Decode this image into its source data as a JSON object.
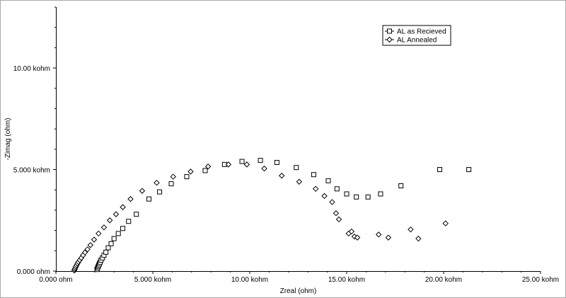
{
  "chart_data": {
    "type": "scatter",
    "title": "",
    "xlabel": "Zreal (ohm)",
    "ylabel": "-Zimag (ohm)",
    "xlim": [
      0,
      25000
    ],
    "ylim": [
      0,
      13000
    ],
    "grid": false,
    "legend_position": "top-right",
    "x_ticks": [
      {
        "value": 0,
        "label": "0.000 ohm"
      },
      {
        "value": 5000,
        "label": "5.000 kohm"
      },
      {
        "value": 10000,
        "label": "10.00 kohm"
      },
      {
        "value": 15000,
        "label": "15.00 kohm"
      },
      {
        "value": 20000,
        "label": "20.00 kohm"
      },
      {
        "value": 25000,
        "label": "25.00 kohm"
      }
    ],
    "y_ticks": [
      {
        "value": 0,
        "label": "0.000 ohm"
      },
      {
        "value": 5000,
        "label": "5.000 kohm"
      },
      {
        "value": 10000,
        "label": "10.00 kohm"
      }
    ],
    "series": [
      {
        "name": "AL as Recieved",
        "marker": "square",
        "points": [
          [
            2120,
            80
          ],
          [
            2150,
            150
          ],
          [
            2180,
            220
          ],
          [
            2210,
            290
          ],
          [
            2240,
            360
          ],
          [
            2280,
            440
          ],
          [
            2330,
            540
          ],
          [
            2400,
            650
          ],
          [
            2480,
            780
          ],
          [
            2580,
            930
          ],
          [
            2700,
            1150
          ],
          [
            2850,
            1350
          ],
          [
            3000,
            1600
          ],
          [
            3220,
            1850
          ],
          [
            3450,
            2100
          ],
          [
            3750,
            2450
          ],
          [
            4150,
            2800
          ],
          [
            4800,
            3550
          ],
          [
            5350,
            3900
          ],
          [
            5950,
            4300
          ],
          [
            6750,
            4650
          ],
          [
            7700,
            4950
          ],
          [
            8700,
            5250
          ],
          [
            9600,
            5400
          ],
          [
            10550,
            5450
          ],
          [
            11400,
            5350
          ],
          [
            12400,
            5100
          ],
          [
            13300,
            4750
          ],
          [
            14050,
            4450
          ],
          [
            14500,
            4050
          ],
          [
            15000,
            3800
          ],
          [
            15500,
            3650
          ],
          [
            16100,
            3650
          ],
          [
            16750,
            3800
          ],
          [
            17800,
            4200
          ],
          [
            19800,
            5000
          ],
          [
            21300,
            5000
          ]
        ]
      },
      {
        "name": "AL Annealed",
        "marker": "diamond",
        "points": [
          [
            950,
            30
          ],
          [
            970,
            90
          ],
          [
            1000,
            150
          ],
          [
            1030,
            220
          ],
          [
            1070,
            290
          ],
          [
            1110,
            370
          ],
          [
            1160,
            450
          ],
          [
            1230,
            540
          ],
          [
            1310,
            650
          ],
          [
            1400,
            780
          ],
          [
            1500,
            920
          ],
          [
            1630,
            1070
          ],
          [
            1780,
            1280
          ],
          [
            1970,
            1550
          ],
          [
            2200,
            1850
          ],
          [
            2480,
            2150
          ],
          [
            2780,
            2500
          ],
          [
            3100,
            2800
          ],
          [
            3450,
            3150
          ],
          [
            3850,
            3550
          ],
          [
            4450,
            3950
          ],
          [
            5200,
            4350
          ],
          [
            6050,
            4650
          ],
          [
            6950,
            4900
          ],
          [
            7850,
            5150
          ],
          [
            8900,
            5250
          ],
          [
            9850,
            5250
          ],
          [
            10750,
            5050
          ],
          [
            11650,
            4700
          ],
          [
            12550,
            4400
          ],
          [
            13400,
            4050
          ],
          [
            13850,
            3700
          ],
          [
            14250,
            3400
          ],
          [
            14450,
            2850
          ],
          [
            14600,
            2550
          ],
          [
            15100,
            1850
          ],
          [
            15250,
            1950
          ],
          [
            15400,
            1700
          ],
          [
            15550,
            1650
          ],
          [
            16650,
            1800
          ],
          [
            17150,
            1650
          ],
          [
            18300,
            2050
          ],
          [
            18700,
            1600
          ],
          [
            20100,
            2350
          ]
        ]
      }
    ]
  }
}
